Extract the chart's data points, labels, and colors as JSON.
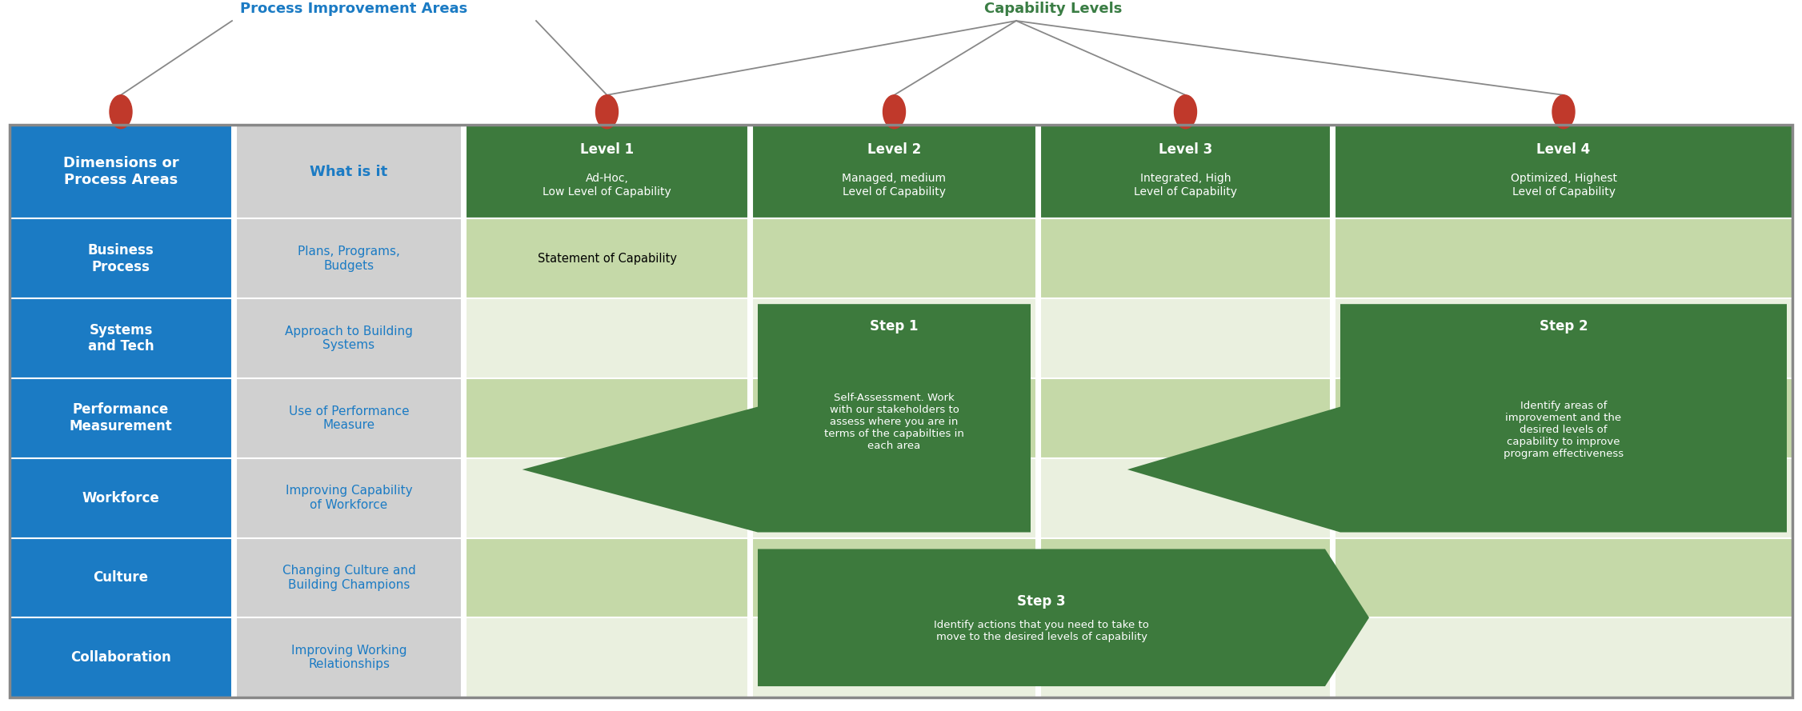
{
  "title_area": "Process Improvement Areas",
  "title_capability": "Capability Levels",
  "title_color_area": "#1B7BC4",
  "title_color_capability": "#3A7D44",
  "header_row": {
    "col0": "Dimensions or\nProcess Areas",
    "col1": "What is it",
    "col2_bold": "Level 1",
    "col2_rest": "Ad-Hoc,\nLow Level of Capability",
    "col3_bold": "Level 2",
    "col3_rest": "Managed, medium\nLevel of Capability",
    "col4_bold": "Level 3",
    "col4_rest": "Integrated, High\nLevel of Capability",
    "col5_bold": "Level 4",
    "col5_rest": "Optimized, Highest\nLevel of Capability"
  },
  "rows": [
    {
      "col0": "Business\nProcess",
      "col1": "Plans, Programs,\nBudgets",
      "col2": "Statement of Capability"
    },
    {
      "col0": "Systems\nand Tech",
      "col1": "Approach to Building\nSystems",
      "col2": ""
    },
    {
      "col0": "Performance\nMeasurement",
      "col1": "Use of Performance\nMeasure",
      "col2": ""
    },
    {
      "col0": "Workforce",
      "col1": "Improving Capability\nof Workforce",
      "col2": ""
    },
    {
      "col0": "Culture",
      "col1": "Changing Culture and\nBuilding Champions",
      "col2": ""
    },
    {
      "col0": "Collaboration",
      "col1": "Improving Working\nRelationships",
      "col2": ""
    }
  ],
  "col0_color": "#1B7BC4",
  "col1_bg": "#D0D0D0",
  "header_green": "#3D7A3D",
  "light_green_even": "#C5D9A8",
  "light_green_odd": "#DDE8CC",
  "lighter_green": "#EAF0DF",
  "step1_bold": "Step 1",
  "step1_rest": "Self-Assessment. Work\nwith our stakeholders to\nassess where you are in\nterms of the capabilties in\neach area",
  "step2_bold": "Step 2",
  "step2_rest": "Identify areas of\nimprovement and the\ndesired levels of\ncapability to improve\nprogram effectiveness",
  "step3_bold": "Step 3",
  "step3_rest": "Identify actions that you need to take to\nmove to the desired levels of capability",
  "dot_color": "#C0392B",
  "line_color": "#888888",
  "border_color": "#888888"
}
